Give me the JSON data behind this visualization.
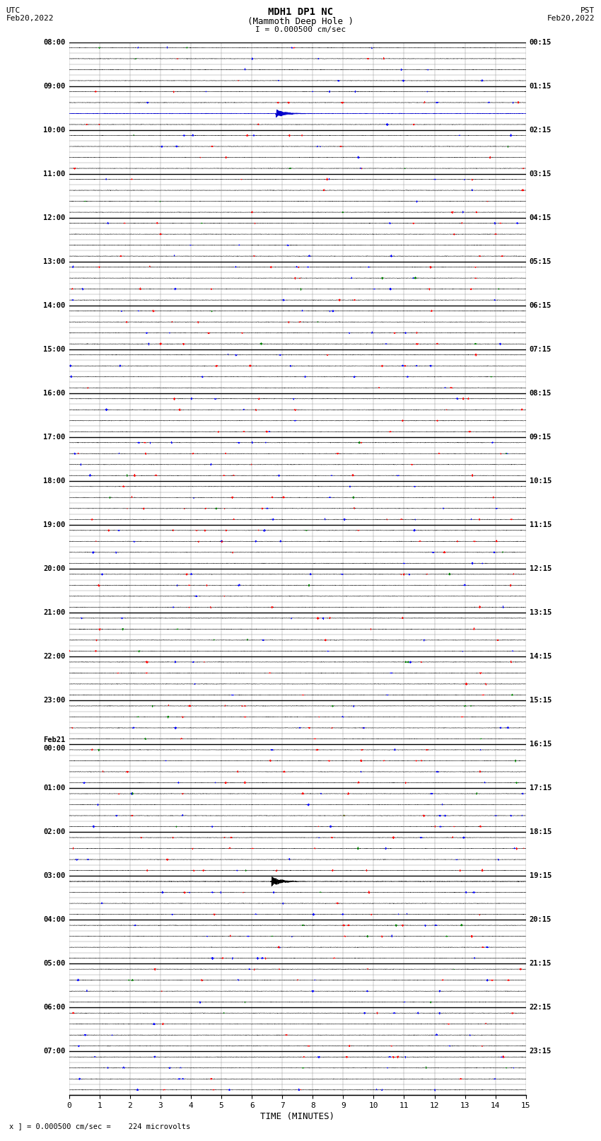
{
  "title_line1": "MDH1 DP1 NC",
  "title_line2": "(Mammoth Deep Hole )",
  "title_line3": "I = 0.000500 cm/sec",
  "label_utc": "UTC",
  "label_utc_date": "Feb20,2022",
  "label_pst": "PST",
  "label_pst_date": "Feb20,2022",
  "xlabel": "TIME (MINUTES)",
  "footer": "x ] = 0.000500 cm/sec =    224 microvolts",
  "left_hour_labels": [
    "08:00",
    "09:00",
    "10:00",
    "11:00",
    "12:00",
    "13:00",
    "14:00",
    "15:00",
    "16:00",
    "17:00",
    "18:00",
    "19:00",
    "20:00",
    "21:00",
    "22:00",
    "23:00",
    "Feb21\n00:00",
    "01:00",
    "02:00",
    "03:00",
    "04:00",
    "05:00",
    "06:00",
    "07:00"
  ],
  "right_hour_labels": [
    "00:15",
    "01:15",
    "02:15",
    "03:15",
    "04:15",
    "05:15",
    "06:15",
    "07:15",
    "08:15",
    "09:15",
    "10:15",
    "11:15",
    "12:15",
    "13:15",
    "14:15",
    "15:15",
    "16:15",
    "17:15",
    "18:15",
    "19:15",
    "20:15",
    "21:15",
    "22:15",
    "23:15"
  ],
  "n_rows": 96,
  "x_min": 0,
  "x_max": 15,
  "x_ticks": [
    0,
    1,
    2,
    3,
    4,
    5,
    6,
    7,
    8,
    9,
    10,
    11,
    12,
    13,
    14,
    15
  ],
  "bg_color": "#ffffff",
  "event1_row": 6,
  "event1_minute": 6.8,
  "event2_row": 76,
  "event2_minute": 6.65,
  "spike_colors": [
    "#ff0000",
    "#0000ff",
    "#008000"
  ],
  "spike_color_weights": [
    0.45,
    0.45,
    0.1
  ]
}
